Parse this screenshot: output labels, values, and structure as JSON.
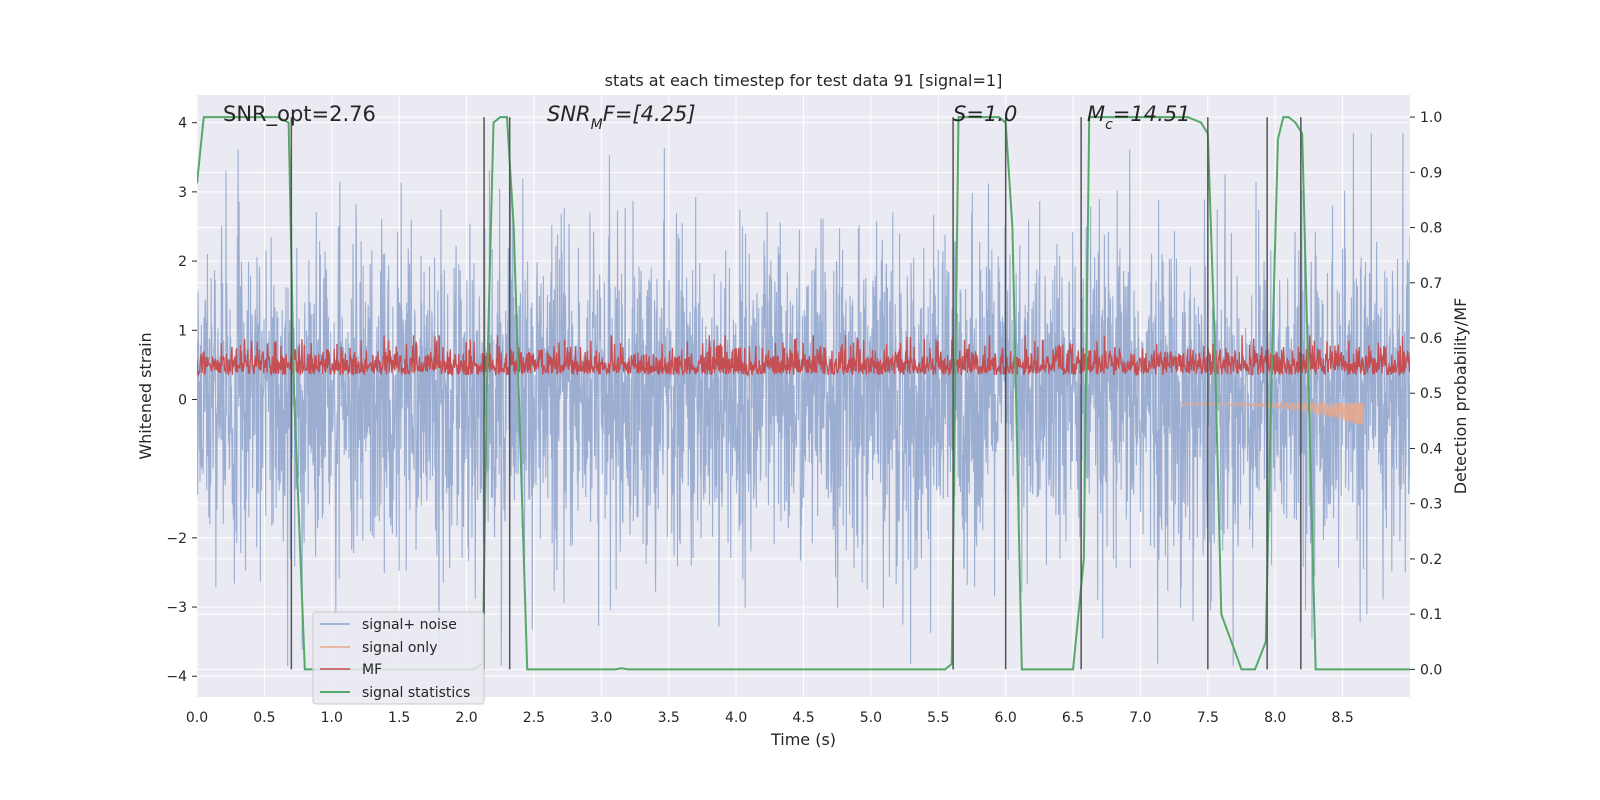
{
  "chart_data": {
    "type": "line",
    "title": "stats at each timestep for test data 91 [signal=1]",
    "xlabel": "Time (s)",
    "ylabel": "Whitened strain",
    "ylabel_right": "Detection probability/MF",
    "xlim": [
      0.0,
      9.0
    ],
    "ylim": [
      -4.3,
      4.4
    ],
    "ylim_right": [
      -0.05,
      1.04
    ],
    "x_ticks": [
      "0.0",
      "0.5",
      "1.0",
      "1.5",
      "2.0",
      "2.5",
      "3.0",
      "3.5",
      "4.0",
      "4.5",
      "5.0",
      "5.5",
      "6.0",
      "6.5",
      "7.0",
      "7.5",
      "8.0",
      "8.5"
    ],
    "y_ticks": [
      "4",
      "3",
      "2",
      "1",
      "0",
      "−2",
      "−3",
      "−4"
    ],
    "y_ticks_right": [
      "1.0",
      "0.9",
      "0.8",
      "0.7",
      "0.6",
      "0.5",
      "0.4",
      "0.3",
      "0.2",
      "0.1",
      "0.0"
    ],
    "grid": true,
    "legend_position": "lower-left",
    "annotations": [
      {
        "text": "SNR_opt=2.76",
        "italic": false
      },
      {
        "base": "SNR",
        "sub": "M",
        "suffix": "F=[4.25]",
        "italic": true
      },
      {
        "base": "S",
        "sub": "",
        "suffix": "=1.0",
        "italic": true
      },
      {
        "base": "M",
        "sub": "c",
        "suffix": "=14.51",
        "italic": true
      }
    ],
    "series": [
      {
        "name": "signal+ noise",
        "color": "#8da3cd",
        "axis": "left",
        "style": "dense noise, amplitude about ±2 with peaks to ±3.8"
      },
      {
        "name": "signal only",
        "color": "#e8a98d",
        "axis": "left",
        "style": "chirp near the end, 7.3–8.65 s"
      },
      {
        "name": "MF",
        "color": "#c44e52",
        "axis": "right",
        "style": "dense trace between 0.5 and 0.6"
      },
      {
        "name": "signal statistics",
        "color": "#55a868",
        "axis": "right",
        "x": [
          0.0,
          0.05,
          0.1,
          0.6,
          0.68,
          0.72,
          0.8,
          0.9,
          2.05,
          2.12,
          2.15,
          2.2,
          2.25,
          2.3,
          2.35,
          2.45,
          3.1,
          3.15,
          3.2,
          5.55,
          5.6,
          5.65,
          5.7,
          5.95,
          6.0,
          6.05,
          6.12,
          6.2,
          6.5,
          6.58,
          6.62,
          7.35,
          7.45,
          7.5,
          7.55,
          7.6,
          7.75,
          7.85,
          7.93,
          7.97,
          8.02,
          8.06,
          8.1,
          8.15,
          8.2,
          8.3,
          9.0
        ],
        "values": [
          0.88,
          1.0,
          1.0,
          1.0,
          0.99,
          0.5,
          0.0,
          0.0,
          0.0,
          0.01,
          0.5,
          0.99,
          1.0,
          1.0,
          0.8,
          0.0,
          0.0,
          0.002,
          0.0,
          0.0,
          0.01,
          1.0,
          1.0,
          1.0,
          0.99,
          0.8,
          0.0,
          0.0,
          0.0,
          0.2,
          1.0,
          1.0,
          0.99,
          0.97,
          0.6,
          0.1,
          0.0,
          0.0,
          0.05,
          0.5,
          0.96,
          1.0,
          1.0,
          0.99,
          0.97,
          0.0,
          0.0
        ]
      }
    ],
    "vertical_lines": {
      "color": "#555555",
      "x": [
        0.7,
        2.13,
        2.32,
        5.61,
        6.0,
        6.56,
        7.5,
        7.94,
        8.19
      ]
    },
    "colors": {
      "background": "#eaeaf2",
      "grid": "#ffffff",
      "text": "#262626"
    }
  }
}
